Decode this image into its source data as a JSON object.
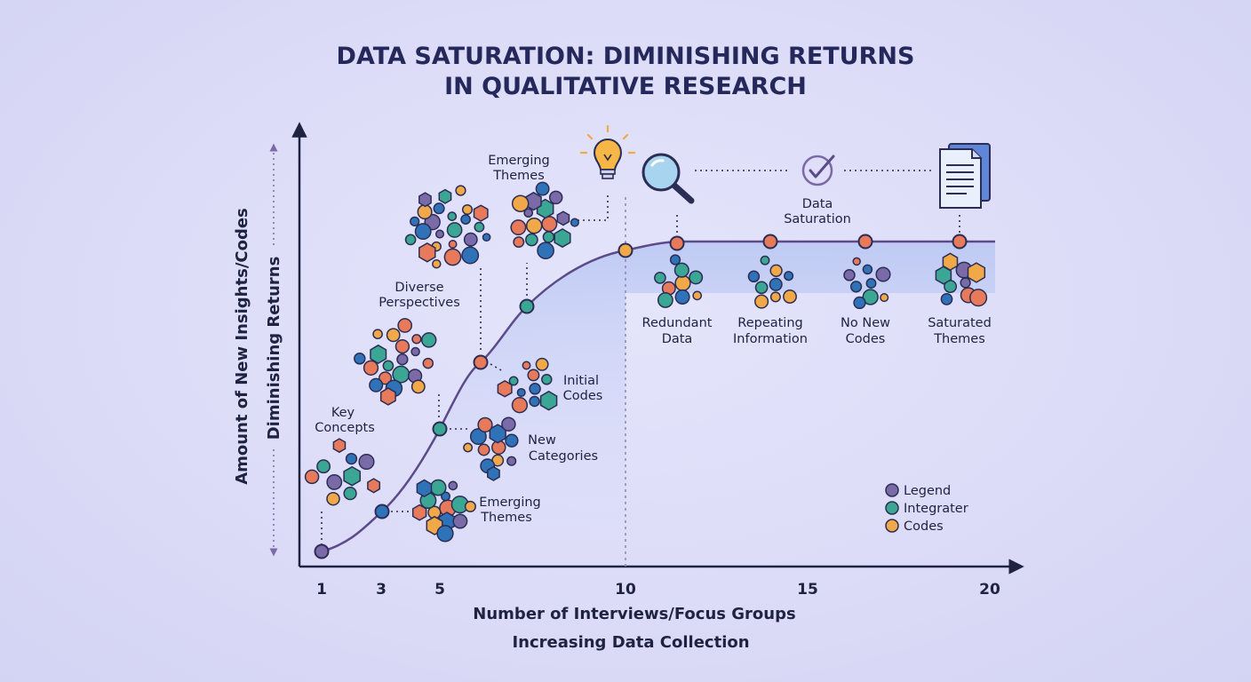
{
  "title_line1": "DATA SATURATION: DIMINISHING RETURNS",
  "title_line2": "IN QUALITATIVE RESEARCH",
  "axes": {
    "x_label": "Number of Interviews/Focus Groups",
    "x_sublabel": "Increasing Data Collection",
    "y_label": "Amount of New Insights/Codes",
    "y_sublabel": "Diminishing Returns",
    "x_ticks": [
      "1",
      "3",
      "5",
      "10",
      "15",
      "20"
    ]
  },
  "stages": {
    "key_concepts": [
      "Key",
      "Concepts"
    ],
    "emerging_themes_low": [
      "Emerging",
      "Themes"
    ],
    "new_categories": [
      "New",
      "Categories"
    ],
    "diverse_perspectives": [
      "Diverse",
      "Perspectives"
    ],
    "initial_codes": [
      "Initial",
      "Codes"
    ],
    "emerging_themes_high": [
      "Emerging",
      "Themes"
    ],
    "data_saturation": [
      "Data",
      "Saturation"
    ],
    "redundant_data": [
      "Redundant",
      "Data"
    ],
    "repeating_information": [
      "Repeating",
      "Information"
    ],
    "no_new_codes": [
      "No New",
      "Codes"
    ],
    "saturated_themes": [
      "Saturated",
      "Themes"
    ]
  },
  "legend": [
    "Legend",
    "Integrater",
    "Codes"
  ],
  "icons": [
    "lightbulb-icon",
    "magnifier-icon",
    "checkmark-icon",
    "document-icon"
  ],
  "colors": {
    "curve": "#5c4a8a",
    "axis": "#1f2240",
    "purple": "#7a6aa8",
    "teal": "#3aa693",
    "orange": "#f0a848",
    "blue": "#2f72b8",
    "coral": "#e87a5c"
  }
}
